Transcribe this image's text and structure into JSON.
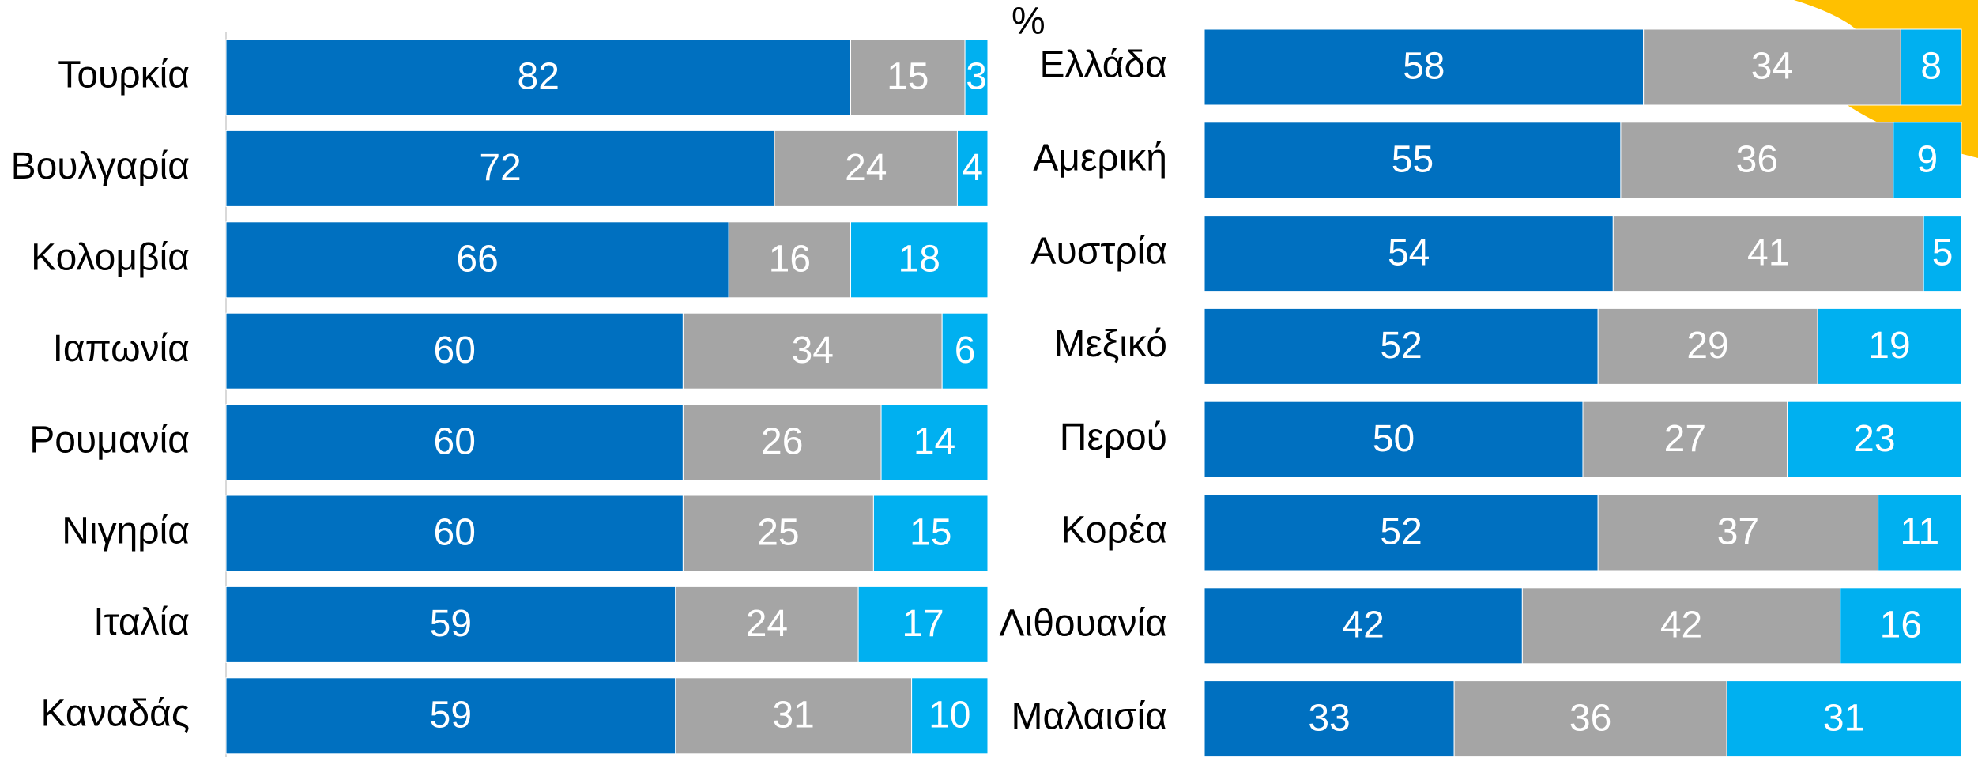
{
  "chart_data": [
    {
      "type": "bar",
      "orientation": "horizontal",
      "stacked": true,
      "categories": [
        "Τουρκία",
        "Βουλγαρία",
        "Κολομβία",
        "Ιαπωνία",
        "Ρουμανία",
        "Νιγηρία",
        "Ιταλία",
        "Καναδάς"
      ],
      "series": [
        {
          "color": "#0070c0",
          "values": [
            82,
            72,
            66,
            60,
            60,
            60,
            59,
            59
          ]
        },
        {
          "color": "#a5a5a5",
          "values": [
            15,
            24,
            16,
            34,
            26,
            25,
            24,
            31
          ]
        },
        {
          "color": "#00b0f0",
          "values": [
            3,
            4,
            18,
            6,
            14,
            15,
            17,
            10
          ]
        }
      ],
      "xlim": [
        0,
        100
      ]
    },
    {
      "type": "bar",
      "orientation": "horizontal",
      "stacked": true,
      "annotation": "%",
      "categories": [
        "Ελλάδα",
        "Αμερική",
        "Αυστρία",
        "Μεξικό",
        "Περού",
        "Κορέα",
        "Λιθουανία",
        "Μαλαισία"
      ],
      "series": [
        {
          "color": "#0070c0",
          "values": [
            58,
            55,
            54,
            52,
            50,
            52,
            42,
            33
          ]
        },
        {
          "color": "#a5a5a5",
          "values": [
            34,
            36,
            41,
            29,
            27,
            37,
            42,
            36
          ]
        },
        {
          "color": "#00b0f0",
          "values": [
            8,
            9,
            5,
            19,
            23,
            11,
            16,
            31
          ]
        }
      ],
      "xlim": [
        0,
        100
      ]
    }
  ]
}
